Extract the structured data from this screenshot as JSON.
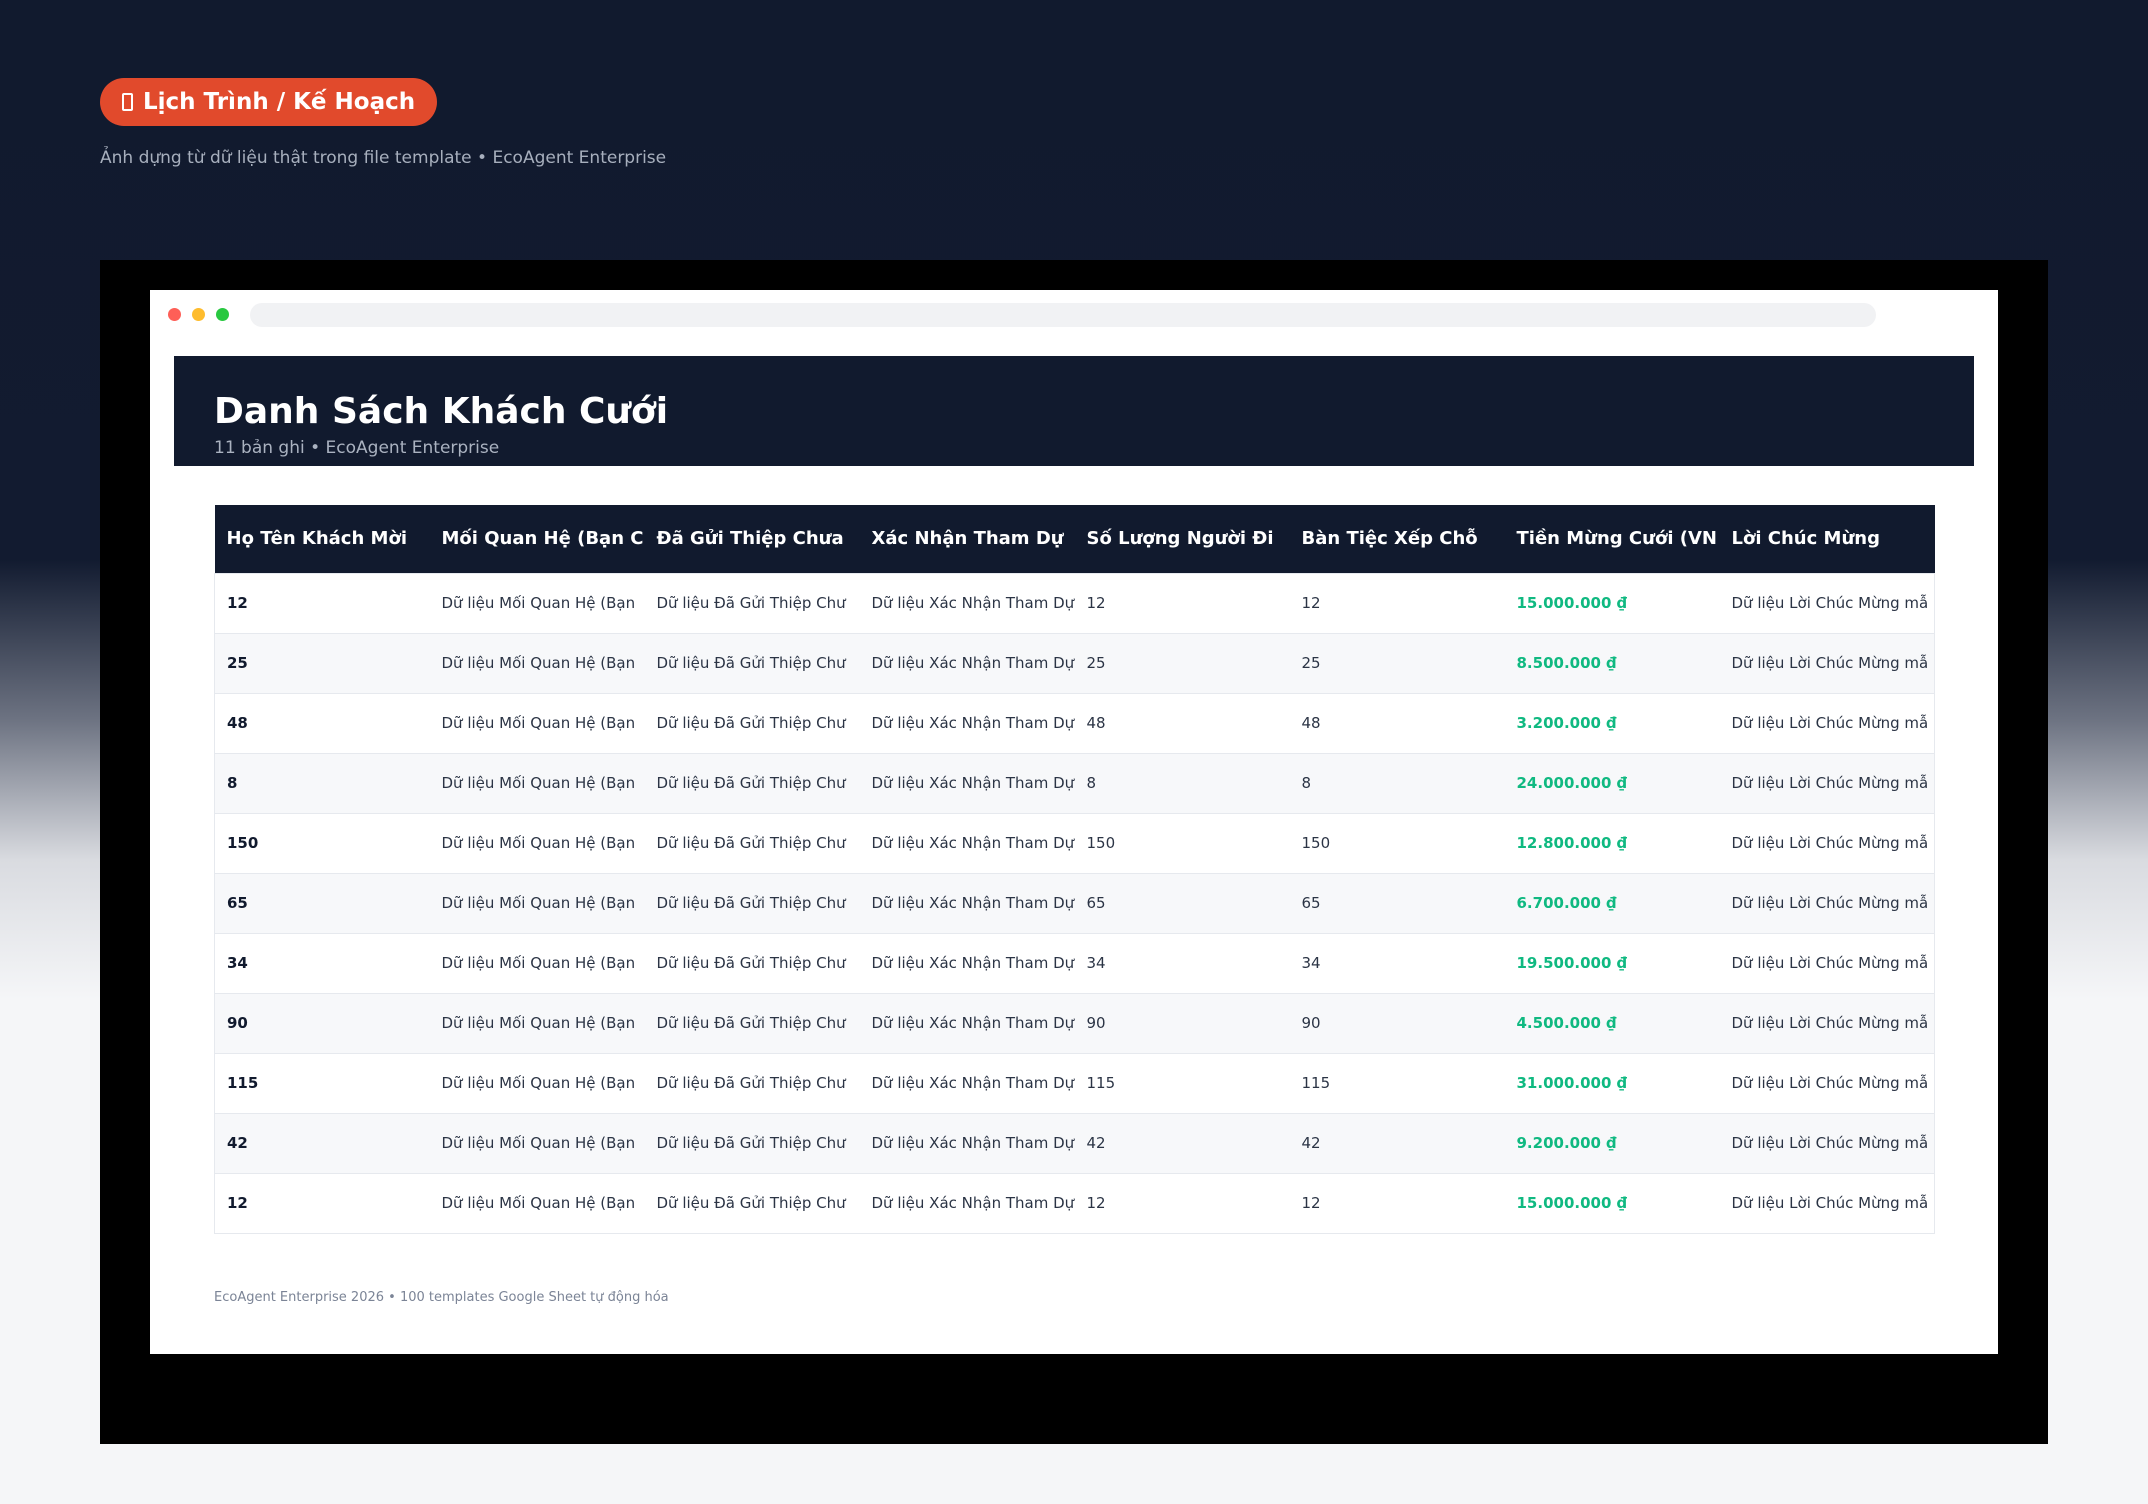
{
  "hero": {
    "pill_label": "Lịch Trình / Kế Hoạch",
    "pill_icon": "document-icon",
    "subtitle": "Ảnh dựng từ dữ liệu thật trong file template • EcoAgent Enterprise"
  },
  "banner": {
    "title": "Danh Sách Khách Cưới",
    "subtitle": "11 bản ghi • EcoAgent Enterprise"
  },
  "table": {
    "headers": [
      "Họ Tên Khách Mời",
      "Mối Quan Hệ (Bạn C",
      "Đã Gửi Thiệp Chưa",
      "Xác Nhận Tham Dự",
      "Số Lượng Người Đi",
      "Bàn Tiệc Xếp Chỗ",
      "Tiền Mừng Cưới (VN",
      "Lời Chúc Mừng"
    ],
    "rows": [
      [
        "12",
        "Dữ liệu Mối Quan Hệ (Bạn",
        "Dữ liệu Đã Gửi Thiệp Chư",
        "Dữ liệu Xác Nhận Tham Dự",
        "12",
        "12",
        "15.000.000 ₫",
        "Dữ liệu Lời Chúc Mừng mẫ"
      ],
      [
        "25",
        "Dữ liệu Mối Quan Hệ (Bạn",
        "Dữ liệu Đã Gửi Thiệp Chư",
        "Dữ liệu Xác Nhận Tham Dự",
        "25",
        "25",
        "8.500.000 ₫",
        "Dữ liệu Lời Chúc Mừng mẫ"
      ],
      [
        "48",
        "Dữ liệu Mối Quan Hệ (Bạn",
        "Dữ liệu Đã Gửi Thiệp Chư",
        "Dữ liệu Xác Nhận Tham Dự",
        "48",
        "48",
        "3.200.000 ₫",
        "Dữ liệu Lời Chúc Mừng mẫ"
      ],
      [
        "8",
        "Dữ liệu Mối Quan Hệ (Bạn",
        "Dữ liệu Đã Gửi Thiệp Chư",
        "Dữ liệu Xác Nhận Tham Dự",
        "8",
        "8",
        "24.000.000 ₫",
        "Dữ liệu Lời Chúc Mừng mẫ"
      ],
      [
        "150",
        "Dữ liệu Mối Quan Hệ (Bạn",
        "Dữ liệu Đã Gửi Thiệp Chư",
        "Dữ liệu Xác Nhận Tham Dự",
        "150",
        "150",
        "12.800.000 ₫",
        "Dữ liệu Lời Chúc Mừng mẫ"
      ],
      [
        "65",
        "Dữ liệu Mối Quan Hệ (Bạn",
        "Dữ liệu Đã Gửi Thiệp Chư",
        "Dữ liệu Xác Nhận Tham Dự",
        "65",
        "65",
        "6.700.000 ₫",
        "Dữ liệu Lời Chúc Mừng mẫ"
      ],
      [
        "34",
        "Dữ liệu Mối Quan Hệ (Bạn",
        "Dữ liệu Đã Gửi Thiệp Chư",
        "Dữ liệu Xác Nhận Tham Dự",
        "34",
        "34",
        "19.500.000 ₫",
        "Dữ liệu Lời Chúc Mừng mẫ"
      ],
      [
        "90",
        "Dữ liệu Mối Quan Hệ (Bạn",
        "Dữ liệu Đã Gửi Thiệp Chư",
        "Dữ liệu Xác Nhận Tham Dự",
        "90",
        "90",
        "4.500.000 ₫",
        "Dữ liệu Lời Chúc Mừng mẫ"
      ],
      [
        "115",
        "Dữ liệu Mối Quan Hệ (Bạn",
        "Dữ liệu Đã Gửi Thiệp Chư",
        "Dữ liệu Xác Nhận Tham Dự",
        "115",
        "115",
        "31.000.000 ₫",
        "Dữ liệu Lời Chúc Mừng mẫ"
      ],
      [
        "42",
        "Dữ liệu Mối Quan Hệ (Bạn",
        "Dữ liệu Đã Gửi Thiệp Chư",
        "Dữ liệu Xác Nhận Tham Dự",
        "42",
        "42",
        "9.200.000 ₫",
        "Dữ liệu Lời Chúc Mừng mẫ"
      ],
      [
        "12",
        "Dữ liệu Mối Quan Hệ (Bạn",
        "Dữ liệu Đã Gửi Thiệp Chư",
        "Dữ liệu Xác Nhận Tham Dự",
        "12",
        "12",
        "15.000.000 ₫",
        "Dữ liệu Lời Chúc Mừng mẫ"
      ]
    ]
  },
  "footer": {
    "text": "EcoAgent Enterprise 2026 • 100 templates Google Sheet tự động hóa"
  },
  "colors": {
    "accent": "#e14a2c",
    "navy": "#111a2e",
    "money": "#10b981"
  }
}
